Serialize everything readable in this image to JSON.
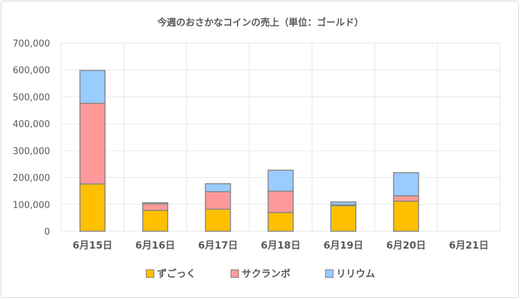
{
  "chart_data": {
    "type": "bar",
    "stacked": true,
    "title": "今週のおさかなコインの売上（単位：ゴールド）",
    "xlabel": "",
    "ylabel": "",
    "ylim": [
      0,
      700000
    ],
    "yticks": [
      0,
      100000,
      200000,
      300000,
      400000,
      500000,
      600000,
      700000
    ],
    "ytick_labels": [
      "0",
      "100,000",
      "200,000",
      "300,000",
      "400,000",
      "500,000",
      "600,000",
      "700,000"
    ],
    "grid": true,
    "legend_position": "bottom",
    "categories": [
      "6月15日",
      "6月16日",
      "6月17日",
      "6月18日",
      "6月19日",
      "6月20日",
      "6月21日"
    ],
    "series": [
      {
        "name": "ずごっく",
        "color": "#ffc000",
        "values": [
          176000,
          78000,
          82000,
          70000,
          95000,
          112000,
          0
        ]
      },
      {
        "name": "サクランボ",
        "color": "#ff9999",
        "values": [
          300000,
          24000,
          65000,
          79000,
          3000,
          20000,
          0
        ]
      },
      {
        "name": "リリウム",
        "color": "#99ccff",
        "values": [
          122000,
          4000,
          30000,
          78000,
          11000,
          86000,
          0
        ]
      }
    ]
  }
}
